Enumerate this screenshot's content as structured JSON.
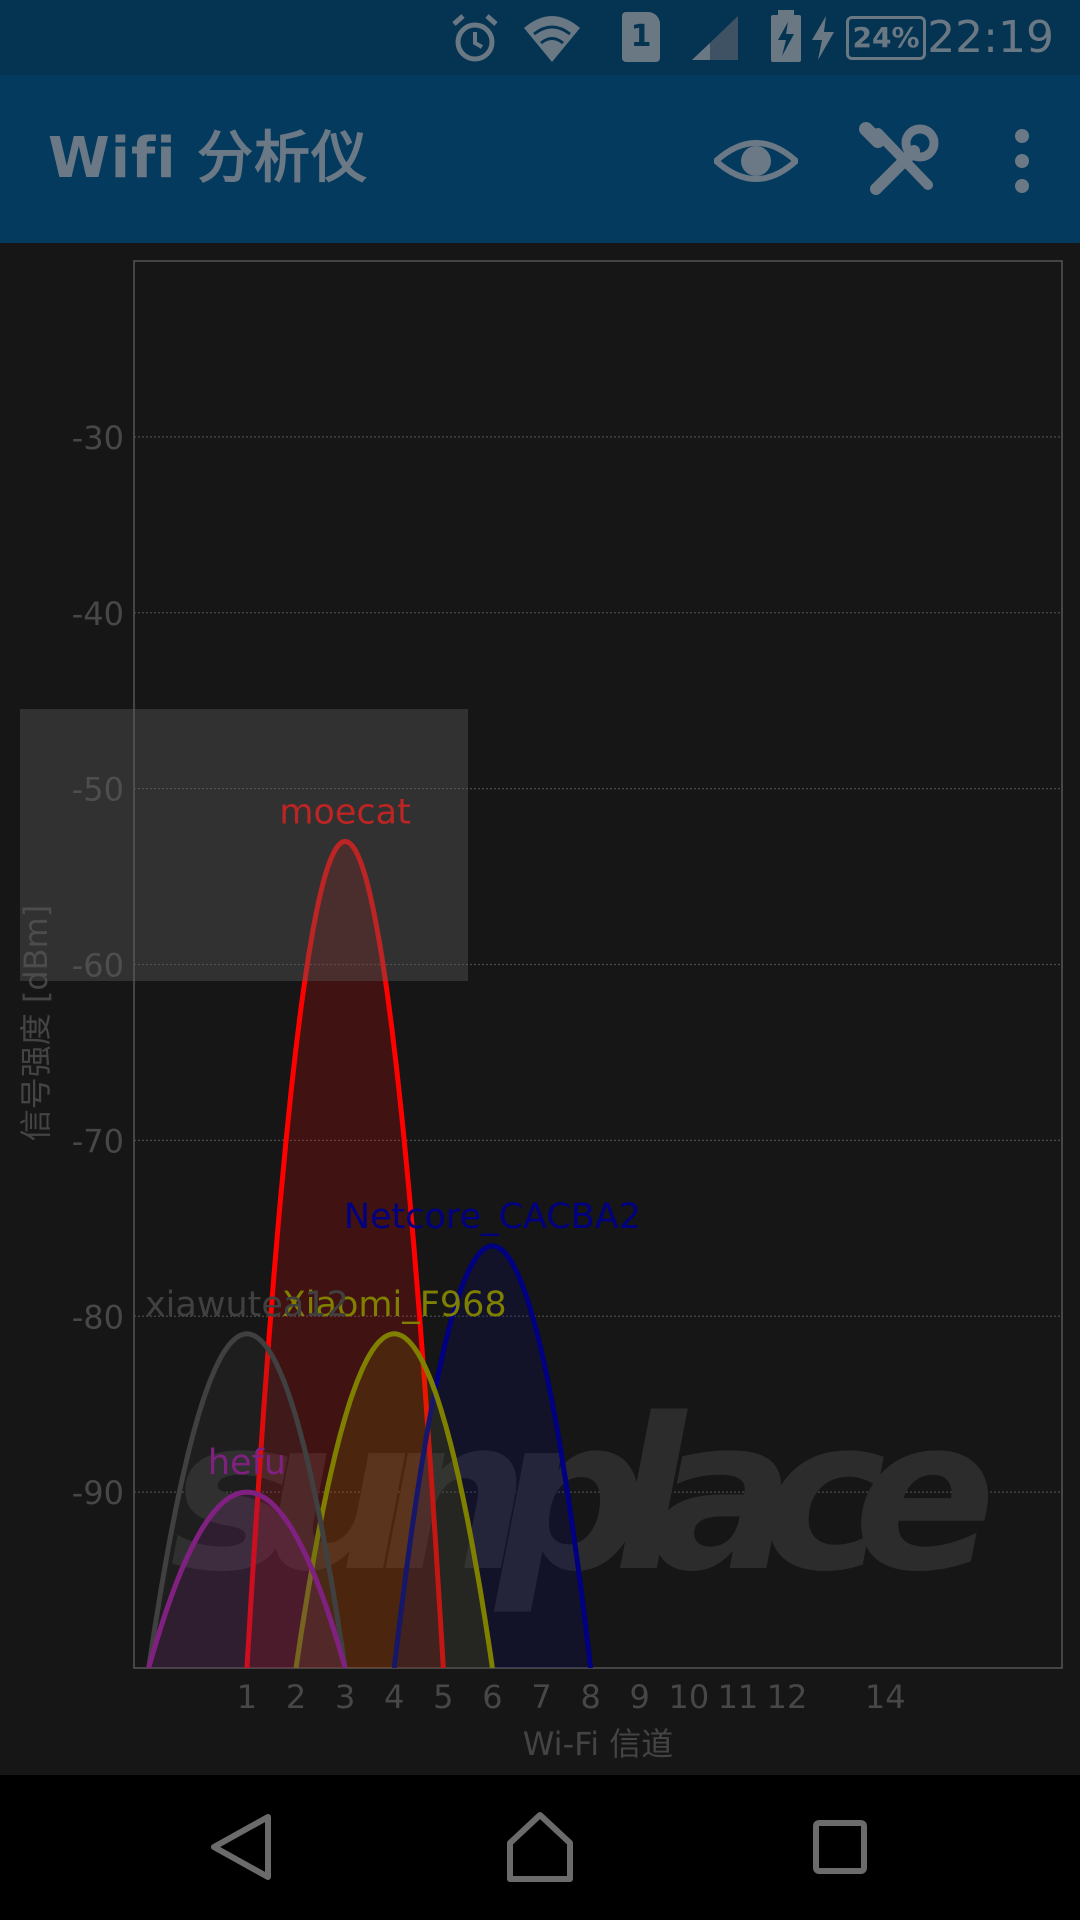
{
  "status_bar": {
    "time": "22:19",
    "battery_percent": "24%",
    "sim_slot": "1",
    "icons": [
      "alarm-icon",
      "wifi-icon",
      "sim-card-icon",
      "cell-signal-icon",
      "battery-charging-icon"
    ]
  },
  "app_bar": {
    "title": "Wifi 分析仪",
    "actions": [
      "eye-icon",
      "tools-icon",
      "more-vert-icon"
    ]
  },
  "chart_data": {
    "type": "line",
    "xlabel": "Wi-Fi 信道",
    "ylabel": "信号强度 [dBm]",
    "xlim": [
      -1.3,
      17.6
    ],
    "ylim": [
      -100,
      -20
    ],
    "x_ticks": [
      "1",
      "2",
      "3",
      "4",
      "5",
      "6",
      "7",
      "8",
      "9",
      "10",
      "11",
      "12",
      "14"
    ],
    "y_ticks": [
      "-30",
      "-40",
      "-50",
      "-60",
      "-70",
      "-80",
      "-90"
    ],
    "grid": true,
    "watermark": "sunplace",
    "series": [
      {
        "name": "moecat",
        "channel": 3,
        "signal": -53,
        "color": "#ff0000"
      },
      {
        "name": "Netcore_CACBA2",
        "channel": 6,
        "signal": -76,
        "color": "#000080"
      },
      {
        "name": "Xiaomi_F968",
        "channel": 4,
        "signal": -81,
        "color": "#808000"
      },
      {
        "name": "xiawutea12",
        "channel": 1,
        "signal": -81,
        "color": "#404040"
      },
      {
        "name": "hefu",
        "channel": 1,
        "signal": -90,
        "color": "#802080"
      }
    ]
  },
  "nav_bar": {
    "buttons": [
      "back-icon",
      "home-icon",
      "recents-icon"
    ]
  }
}
